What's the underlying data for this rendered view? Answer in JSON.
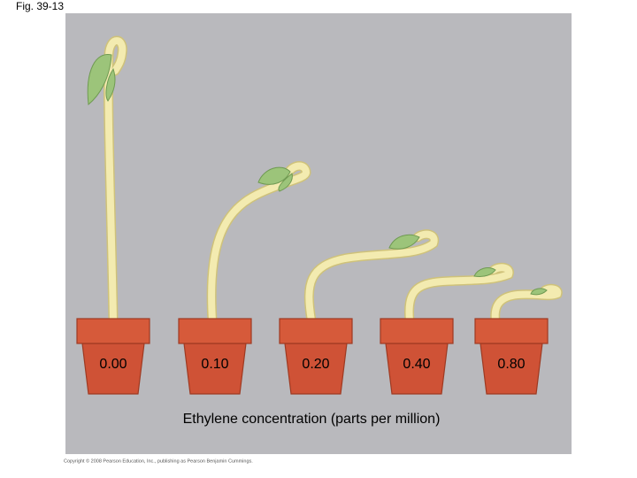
{
  "header": {
    "title": "Fig. 39-13"
  },
  "pots": [
    {
      "label": "0.00"
    },
    {
      "label": "0.10"
    },
    {
      "label": "0.20"
    },
    {
      "label": "0.40"
    },
    {
      "label": "0.80"
    }
  ],
  "axis_label": "Ethylene concentration (parts per million)",
  "copyright": "Copyright © 2008 Pearson Education, Inc., publishing as Pearson Benjamin Cummings."
}
